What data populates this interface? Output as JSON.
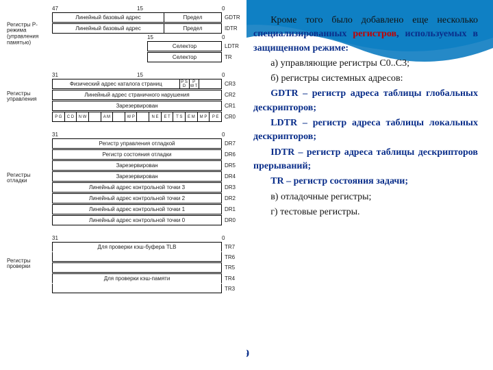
{
  "background": {
    "wave_top_color": "#1ea6e0",
    "wave_bottom_color": "#0d7cc1"
  },
  "right_text": {
    "p1a": "Кроме того было добавлено еще несколько ",
    "p1b": "специализированных регистров, используемых в защищенном режиме:",
    "a": "а) управляющие регистры С0..С3;",
    "b": "б) регистры системных адресов:",
    "gdtr": "GDTR – регистр адреса таблицы глобальных дескрипторов;",
    "ldtr": "LDTR – регистр адреса таблицы локальных дескрипторов;",
    "idtr": "IDTR – регистр адреса таблицы дескрипторов прерываний;",
    "tr": "TR – регистр состояния задачи;",
    "v": "в) отладочные регистры;",
    "g": "г) тестовые регистры."
  },
  "page_num": "9",
  "diagram": {
    "block1": {
      "label": "Регистры Р-режима (управления памятью)",
      "bits_top": [
        "47",
        "15",
        "0"
      ],
      "row1": {
        "c1": "Линейный базовый адрес",
        "c2": "Предел",
        "tag": "GDTR"
      },
      "row2": {
        "c1": "Линейный базовый адрес",
        "c2": "Предел",
        "tag": "IDTR"
      },
      "bits_mid": [
        "15",
        "",
        "0"
      ],
      "row3": {
        "c1": "Селектор",
        "tag": "LDTR"
      },
      "row4": {
        "c1": "Селектор",
        "tag": "TR"
      }
    },
    "block2": {
      "label": "Регистры управления",
      "bits": [
        "31",
        "15",
        "0"
      ],
      "row1": {
        "c1": "Физический адрес каталога страниц",
        "flags": [
          "P S D",
          "P W T"
        ],
        "tag": "CR3"
      },
      "row2": {
        "c1": "Линейный адрес страничного нарушения",
        "tag": "CR2"
      },
      "row3": {
        "c1": "Зарезервирован",
        "tag": "CR1"
      },
      "row4": {
        "flags": [
          "P G",
          "C D",
          "N W",
          " ",
          "A M",
          " ",
          "W P",
          " ",
          "N E",
          "E T",
          "T S",
          "E M",
          "M P",
          "P E"
        ],
        "tag": "CR0"
      }
    },
    "block3": {
      "label": "Регистры отладки",
      "bits": [
        "31",
        "",
        "0"
      ],
      "rows": [
        {
          "c1": "Регистр управления отладкой",
          "tag": "DR7"
        },
        {
          "c1": "Регистр состояния отладки",
          "tag": "DR6"
        },
        {
          "c1": "Зарезервирован",
          "tag": "DR5"
        },
        {
          "c1": "Зарезервирован",
          "tag": "DR4"
        },
        {
          "c1": "Линейный адрес контрольной точки 3",
          "tag": "DR3"
        },
        {
          "c1": "Линейный адрес контрольной точки 2",
          "tag": "DR2"
        },
        {
          "c1": "Линейный адрес контрольной точки 1",
          "tag": "DR1"
        },
        {
          "c1": "Линейный адрес контрольной точки 0",
          "tag": "DR0"
        }
      ]
    },
    "block4": {
      "label": "Регистры проверки",
      "bits": [
        "31",
        "",
        "0"
      ],
      "rows": [
        {
          "c1": "Для проверки кэш-буфера TLB",
          "tag": "TR7",
          "border_bottom": false
        },
        {
          "c1": "",
          "tag": "TR6"
        },
        {
          "c1": "",
          "tag": "TR5"
        },
        {
          "c1": "Для проверки кэш-памяти",
          "tag": "TR4",
          "border_bottom": false
        },
        {
          "c1": "",
          "tag": "TR3"
        }
      ]
    }
  }
}
